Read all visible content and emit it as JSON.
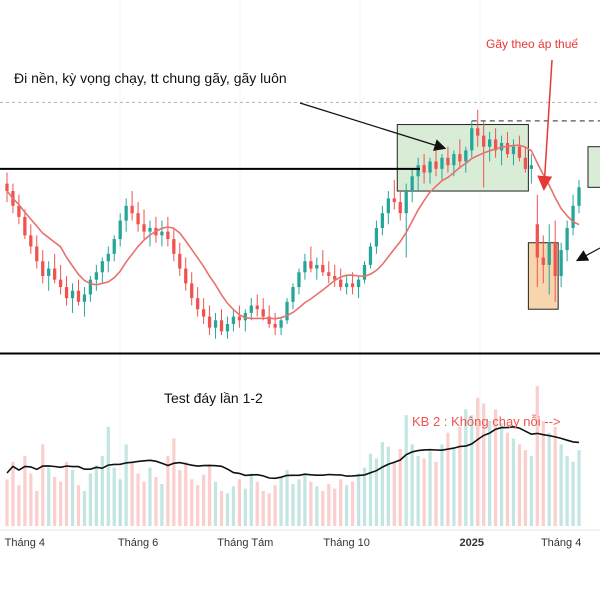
{
  "chart_data": {
    "type": "candlestick",
    "annotations": {
      "top_note": "Đi nền, kỳ vọng chạy, tt chung gãy, gãy luôn",
      "red_note": "Gãy theo áp thuế",
      "bottom_note": "Test đáy lần 1-2",
      "kb_note": "KB 2 : Không chạy nỗi -->"
    },
    "x_ticks": [
      "Tháng 4",
      "Tháng 6",
      "Tháng Tám",
      "Tháng 10",
      "2025",
      "Tháng 4"
    ],
    "candles": [
      [
        25.6,
        25.9,
        25.1,
        25.4
      ],
      [
        25.4,
        25.6,
        24.8,
        25.0
      ],
      [
        25.0,
        25.3,
        24.5,
        24.7
      ],
      [
        24.7,
        24.9,
        24.1,
        24.2
      ],
      [
        24.2,
        24.5,
        23.7,
        23.9
      ],
      [
        23.9,
        24.2,
        23.3,
        23.5
      ],
      [
        23.5,
        23.8,
        22.9,
        23.1
      ],
      [
        23.1,
        23.5,
        22.7,
        23.3
      ],
      [
        23.3,
        23.7,
        22.9,
        23.0
      ],
      [
        23.0,
        23.4,
        22.6,
        22.8
      ],
      [
        22.8,
        23.1,
        22.3,
        22.5
      ],
      [
        22.5,
        22.9,
        22.1,
        22.7
      ],
      [
        22.7,
        23.0,
        22.3,
        22.4
      ],
      [
        22.4,
        22.8,
        22.0,
        22.6
      ],
      [
        22.6,
        23.1,
        22.4,
        23.0
      ],
      [
        23.0,
        23.4,
        22.7,
        23.2
      ],
      [
        23.2,
        23.6,
        22.9,
        23.5
      ],
      [
        23.5,
        23.9,
        23.2,
        23.7
      ],
      [
        23.7,
        24.2,
        23.5,
        24.1
      ],
      [
        24.1,
        24.8,
        23.9,
        24.6
      ],
      [
        24.6,
        25.2,
        24.3,
        25.0
      ],
      [
        25.0,
        25.4,
        24.6,
        24.8
      ],
      [
        24.8,
        25.1,
        24.3,
        24.5
      ],
      [
        24.5,
        24.9,
        24.1,
        24.3
      ],
      [
        24.3,
        24.6,
        23.9,
        24.4
      ],
      [
        24.4,
        24.7,
        24.0,
        24.2
      ],
      [
        24.2,
        24.6,
        23.9,
        24.3
      ],
      [
        24.3,
        24.7,
        23.9,
        24.1
      ],
      [
        24.1,
        24.4,
        23.5,
        23.7
      ],
      [
        23.7,
        24.0,
        23.1,
        23.3
      ],
      [
        23.3,
        23.6,
        22.7,
        22.9
      ],
      [
        22.9,
        23.2,
        22.3,
        22.5
      ],
      [
        22.5,
        22.8,
        22.0,
        22.2
      ],
      [
        22.2,
        22.5,
        21.8,
        22.0
      ],
      [
        22.0,
        22.3,
        21.5,
        21.7
      ],
      [
        21.7,
        22.1,
        21.4,
        21.9
      ],
      [
        21.9,
        22.2,
        21.5,
        21.6
      ],
      [
        21.6,
        22.0,
        21.4,
        21.8
      ],
      [
        21.8,
        22.2,
        21.6,
        22.0
      ],
      [
        22.0,
        22.3,
        21.7,
        21.9
      ],
      [
        21.9,
        22.2,
        21.6,
        22.1
      ],
      [
        22.1,
        22.5,
        21.9,
        22.3
      ],
      [
        22.3,
        22.6,
        22.0,
        22.2
      ],
      [
        22.2,
        22.5,
        21.9,
        22.0
      ],
      [
        22.0,
        22.3,
        21.7,
        21.8
      ],
      [
        21.8,
        22.1,
        21.5,
        21.7
      ],
      [
        21.7,
        22.0,
        21.5,
        21.9
      ],
      [
        21.9,
        22.5,
        21.8,
        22.4
      ],
      [
        22.4,
        22.9,
        22.2,
        22.8
      ],
      [
        22.8,
        23.3,
        22.6,
        23.2
      ],
      [
        23.2,
        23.7,
        23.0,
        23.5
      ],
      [
        23.5,
        23.9,
        23.2,
        23.3
      ],
      [
        23.3,
        23.6,
        23.0,
        23.4
      ],
      [
        23.4,
        23.8,
        23.1,
        23.2
      ],
      [
        23.2,
        23.5,
        22.9,
        23.1
      ],
      [
        23.1,
        23.4,
        22.8,
        23.0
      ],
      [
        23.0,
        23.3,
        22.7,
        22.8
      ],
      [
        22.8,
        23.1,
        22.6,
        22.9
      ],
      [
        22.9,
        23.2,
        22.6,
        22.8
      ],
      [
        22.8,
        23.1,
        22.5,
        23.0
      ],
      [
        23.0,
        23.5,
        22.9,
        23.4
      ],
      [
        23.4,
        24.0,
        23.3,
        23.9
      ],
      [
        23.9,
        24.6,
        23.7,
        24.4
      ],
      [
        24.4,
        25.0,
        24.2,
        24.8
      ],
      [
        24.8,
        25.4,
        24.5,
        25.2
      ],
      [
        25.2,
        25.7,
        24.9,
        25.1
      ],
      [
        25.1,
        25.4,
        24.6,
        24.8
      ],
      [
        24.8,
        25.6,
        23.6,
        25.4
      ],
      [
        25.4,
        26.0,
        25.1,
        25.8
      ],
      [
        25.8,
        26.3,
        25.4,
        26.1
      ],
      [
        26.1,
        26.4,
        25.6,
        25.9
      ],
      [
        25.9,
        26.3,
        25.6,
        26.2
      ],
      [
        26.2,
        26.5,
        25.8,
        26.0
      ],
      [
        26.0,
        26.4,
        25.7,
        26.3
      ],
      [
        26.3,
        26.6,
        25.9,
        26.1
      ],
      [
        26.1,
        26.5,
        25.8,
        26.4
      ],
      [
        26.4,
        26.8,
        26.0,
        26.2
      ],
      [
        26.2,
        26.6,
        25.9,
        26.5
      ],
      [
        26.5,
        27.3,
        26.3,
        27.1
      ],
      [
        27.1,
        27.6,
        26.6,
        26.9
      ],
      [
        26.9,
        27.3,
        25.5,
        26.6
      ],
      [
        26.6,
        27.0,
        26.2,
        26.8
      ],
      [
        26.8,
        27.1,
        26.3,
        26.5
      ],
      [
        26.5,
        26.9,
        26.1,
        26.7
      ],
      [
        26.7,
        27.0,
        26.3,
        26.4
      ],
      [
        26.4,
        26.8,
        26.1,
        26.6
      ],
      [
        26.6,
        26.9,
        26.2,
        26.3
      ],
      [
        26.3,
        26.6,
        25.9,
        26.0
      ],
      [
        26.0,
        26.4,
        25.6,
        26.1
      ],
      [
        24.5,
        25.3,
        22.8,
        23.6
      ],
      [
        23.6,
        24.2,
        22.9,
        23.4
      ],
      [
        23.4,
        24.5,
        22.6,
        24.0
      ],
      [
        24.0,
        24.6,
        22.4,
        23.1
      ],
      [
        23.1,
        24.0,
        22.8,
        23.8
      ],
      [
        23.8,
        24.6,
        23.5,
        24.4
      ],
      [
        24.4,
        25.3,
        24.2,
        25.0
      ],
      [
        25.0,
        25.7,
        24.8,
        25.5
      ]
    ],
    "volume": [
      40,
      55,
      35,
      60,
      45,
      30,
      70,
      50,
      42,
      38,
      55,
      48,
      35,
      30,
      45,
      52,
      60,
      85,
      50,
      40,
      70,
      55,
      45,
      38,
      50,
      42,
      36,
      60,
      75,
      48,
      55,
      40,
      35,
      44,
      52,
      38,
      30,
      28,
      34,
      40,
      32,
      45,
      38,
      30,
      28,
      35,
      42,
      48,
      36,
      40,
      44,
      38,
      34,
      30,
      36,
      32,
      40,
      35,
      38,
      45,
      50,
      62,
      58,
      72,
      68,
      55,
      66,
      95,
      70,
      60,
      58,
      64,
      55,
      70,
      80,
      66,
      85,
      100,
      95,
      110,
      105,
      90,
      100,
      88,
      80,
      75,
      70,
      65,
      60,
      120,
      90,
      80,
      85,
      70,
      60,
      55,
      65
    ],
    "colors": {
      "up": "#26a69a",
      "down": "#ef5350",
      "ma": "#e8716e",
      "box": "#000000",
      "green_zone": "#d9ecd6",
      "orange_zone": "#f7d6ae",
      "annotation_red": "#e53935",
      "kb_red": "#ef5350"
    }
  }
}
